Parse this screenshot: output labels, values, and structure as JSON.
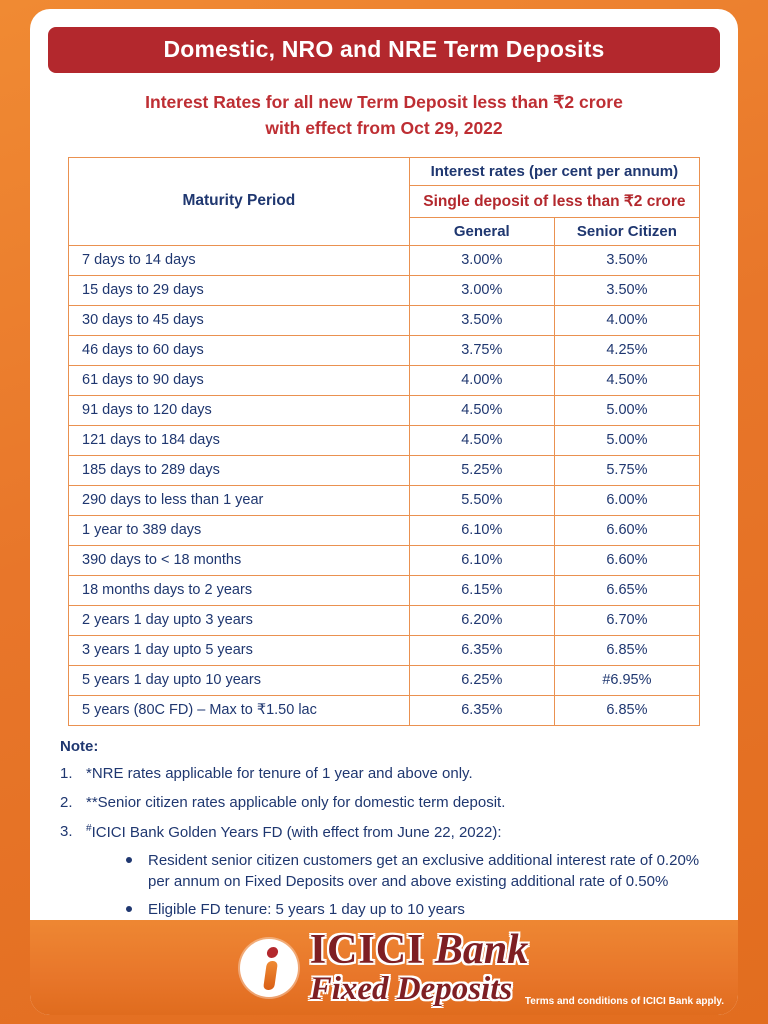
{
  "page": {
    "title": "Domestic, NRO and NRE Term Deposits",
    "subtitle_line1": "Interest Rates for all new Term Deposit less than ₹2 crore",
    "subtitle_line2": "with effect from Oct 29, 2022"
  },
  "table": {
    "col_maturity": "Maturity Period",
    "header_interest": "Interest rates (per cent per annum)",
    "header_single_deposit": "Single deposit of less than ₹2 crore",
    "col_general": "General",
    "col_senior": "Senior Citizen",
    "rows": [
      {
        "maturity": "7 days to 14 days",
        "general": "3.00%",
        "senior": "3.50%"
      },
      {
        "maturity": "15 days to 29 days",
        "general": "3.00%",
        "senior": "3.50%"
      },
      {
        "maturity": "30 days to 45 days",
        "general": "3.50%",
        "senior": "4.00%"
      },
      {
        "maturity": "46 days to 60 days",
        "general": "3.75%",
        "senior": "4.25%"
      },
      {
        "maturity": "61 days to 90 days",
        "general": "4.00%",
        "senior": "4.50%"
      },
      {
        "maturity": "91 days to 120 days",
        "general": "4.50%",
        "senior": "5.00%"
      },
      {
        "maturity": "121 days to 184 days",
        "general": "4.50%",
        "senior": "5.00%"
      },
      {
        "maturity": "185 days to 289 days",
        "general": "5.25%",
        "senior": "5.75%"
      },
      {
        "maturity": "290 days to less than 1 year",
        "general": "5.50%",
        "senior": "6.00%"
      },
      {
        "maturity": "1 year to 389 days",
        "general": "6.10%",
        "senior": "6.60%"
      },
      {
        "maturity": "390 days to < 18 months",
        "general": "6.10%",
        "senior": "6.60%"
      },
      {
        "maturity": "18 months days to 2 years",
        "general": "6.15%",
        "senior": "6.65%"
      },
      {
        "maturity": "2 years 1 day upto 3 years",
        "general": "6.20%",
        "senior": "6.70%"
      },
      {
        "maturity": "3 years 1 day upto 5 years",
        "general": "6.35%",
        "senior": "6.85%"
      },
      {
        "maturity": "5 years 1 day upto 10 years",
        "general": "6.25%",
        "senior": "#6.95%"
      },
      {
        "maturity": "5 years (80C FD) – Max to ₹1.50 lac",
        "general": "6.35%",
        "senior": "6.85%"
      }
    ]
  },
  "notes": {
    "label": "Note:",
    "note1_num": "1.",
    "note1_text": "*NRE rates applicable for tenure of 1 year and above only.",
    "note2_num": "2.",
    "note2_text": "**Senior citizen rates applicable only for domestic term deposit.",
    "note3_num": "3.",
    "note3_sup": "#",
    "note3_text": "ICICI Bank Golden Years FD (with effect from June 22, 2022):",
    "bullet1": "Resident senior citizen customers get an exclusive additional interest rate of 0.20% per annum on Fixed Deposits over and above existing additional rate of 0.50%",
    "bullet2": "Eligible FD tenure: 5 years 1 day up to 10 years"
  },
  "footer": {
    "brand_icici": "ICICI",
    "brand_bank": " Bank",
    "brand_product": "Fixed Deposits",
    "terms": "Terms and conditions of ICICI Bank apply."
  },
  "colors": {
    "accent_orange": "#e8762a",
    "maroon": "#b3282d",
    "navy_text": "#1f3770",
    "brand_maroon": "#7e1f23",
    "table_border": "#ea9150"
  }
}
